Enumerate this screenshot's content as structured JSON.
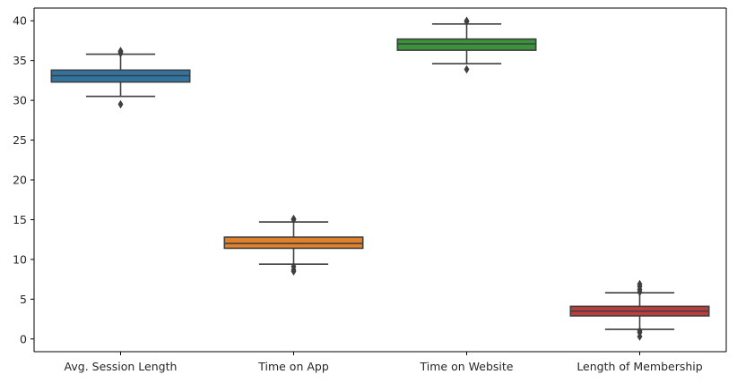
{
  "chart_data": {
    "type": "box",
    "title": "",
    "xlabel": "",
    "ylabel": "",
    "ylim": [
      -1.6,
      41.6
    ],
    "yticks": [
      0,
      5,
      10,
      15,
      20,
      25,
      30,
      35,
      40
    ],
    "grid": false,
    "legend": "none",
    "categories": [
      "Avg. Session Length",
      "Time on App",
      "Time on Website",
      "Length of Membership"
    ],
    "colors": [
      "#3274a1",
      "#e1812c",
      "#3a923a",
      "#c03d3e"
    ],
    "boxes": [
      {
        "q1": 32.3,
        "median": 33.1,
        "q3": 33.8,
        "whisker_low": 30.5,
        "whisker_high": 35.8,
        "outliers": [
          29.5,
          35.9,
          36.1,
          36.2
        ]
      },
      {
        "q1": 11.4,
        "median": 12.0,
        "q3": 12.8,
        "whisker_low": 9.4,
        "whisker_high": 14.7,
        "outliers": [
          9.1,
          8.7,
          8.5,
          15.0,
          15.1
        ]
      },
      {
        "q1": 36.3,
        "median": 37.1,
        "q3": 37.7,
        "whisker_low": 34.6,
        "whisker_high": 39.6,
        "outliers": [
          33.9,
          39.9,
          40.0
        ]
      },
      {
        "q1": 2.9,
        "median": 3.5,
        "q3": 4.1,
        "whisker_low": 1.2,
        "whisker_high": 5.8,
        "outliers": [
          0.3,
          0.8,
          1.0,
          5.9,
          6.2,
          6.6,
          6.9
        ]
      }
    ]
  }
}
